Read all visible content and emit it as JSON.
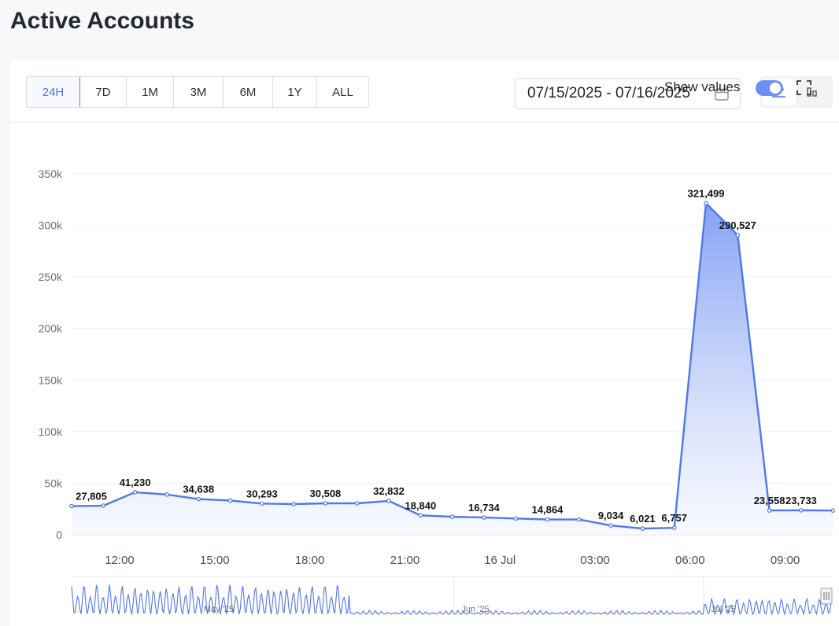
{
  "page": {
    "title": "Active Accounts"
  },
  "toolbar": {
    "ranges": [
      "24H",
      "7D",
      "1M",
      "3M",
      "6M",
      "1Y",
      "ALL"
    ],
    "active_range": "24H",
    "date_range": "07/15/2025 - 07/16/2025"
  },
  "controls": {
    "show_values_label": "Show values",
    "show_values_on": true
  },
  "colors": {
    "accent": "#5b82ea",
    "line": "#4f78ea",
    "fill_top": "#7f9df2",
    "fill_bottom": "#f3f6ff"
  },
  "icons": {
    "calendar": "calendar-icon",
    "line_view": "line-chart-icon",
    "bar_view": "bar-chart-icon",
    "fullscreen": "fullscreen-icon"
  },
  "chart_data": {
    "type": "area",
    "title": "Active Accounts",
    "ylim": [
      0,
      350000
    ],
    "y_ticks": [
      0,
      50000,
      100000,
      150000,
      200000,
      250000,
      300000,
      350000
    ],
    "y_tick_labels": [
      "0",
      "50k",
      "100k",
      "150k",
      "200k",
      "250k",
      "300k",
      "350k"
    ],
    "x_tick_labels": [
      "12:00",
      "15:00",
      "18:00",
      "21:00",
      "16 Jul",
      "03:00",
      "06:00",
      "09:00"
    ],
    "grid": true,
    "show_values": true,
    "series": [
      {
        "values": [
          27805,
          28200,
          41230,
          39000,
          34638,
          33200,
          30293,
          29800,
          30508,
          30500,
          32832,
          18840,
          17500,
          16734,
          15800,
          14864,
          14800,
          9034,
          6021,
          6757,
          321499,
          290527,
          23558,
          23733,
          23500
        ],
        "labels": [
          "27,805",
          "",
          "41,230",
          "",
          "34,638",
          "",
          "30,293",
          "",
          "30,508",
          "",
          "32,832",
          "18,840",
          "",
          "16,734",
          "",
          "14,864",
          "",
          "9,034",
          "6,021",
          "6,757",
          "321,499",
          "290,527",
          "23,558",
          "23,733",
          ""
        ]
      }
    ],
    "navigator": {
      "labels": [
        "May '25",
        "Jun '25",
        "Jul '25"
      ]
    }
  }
}
